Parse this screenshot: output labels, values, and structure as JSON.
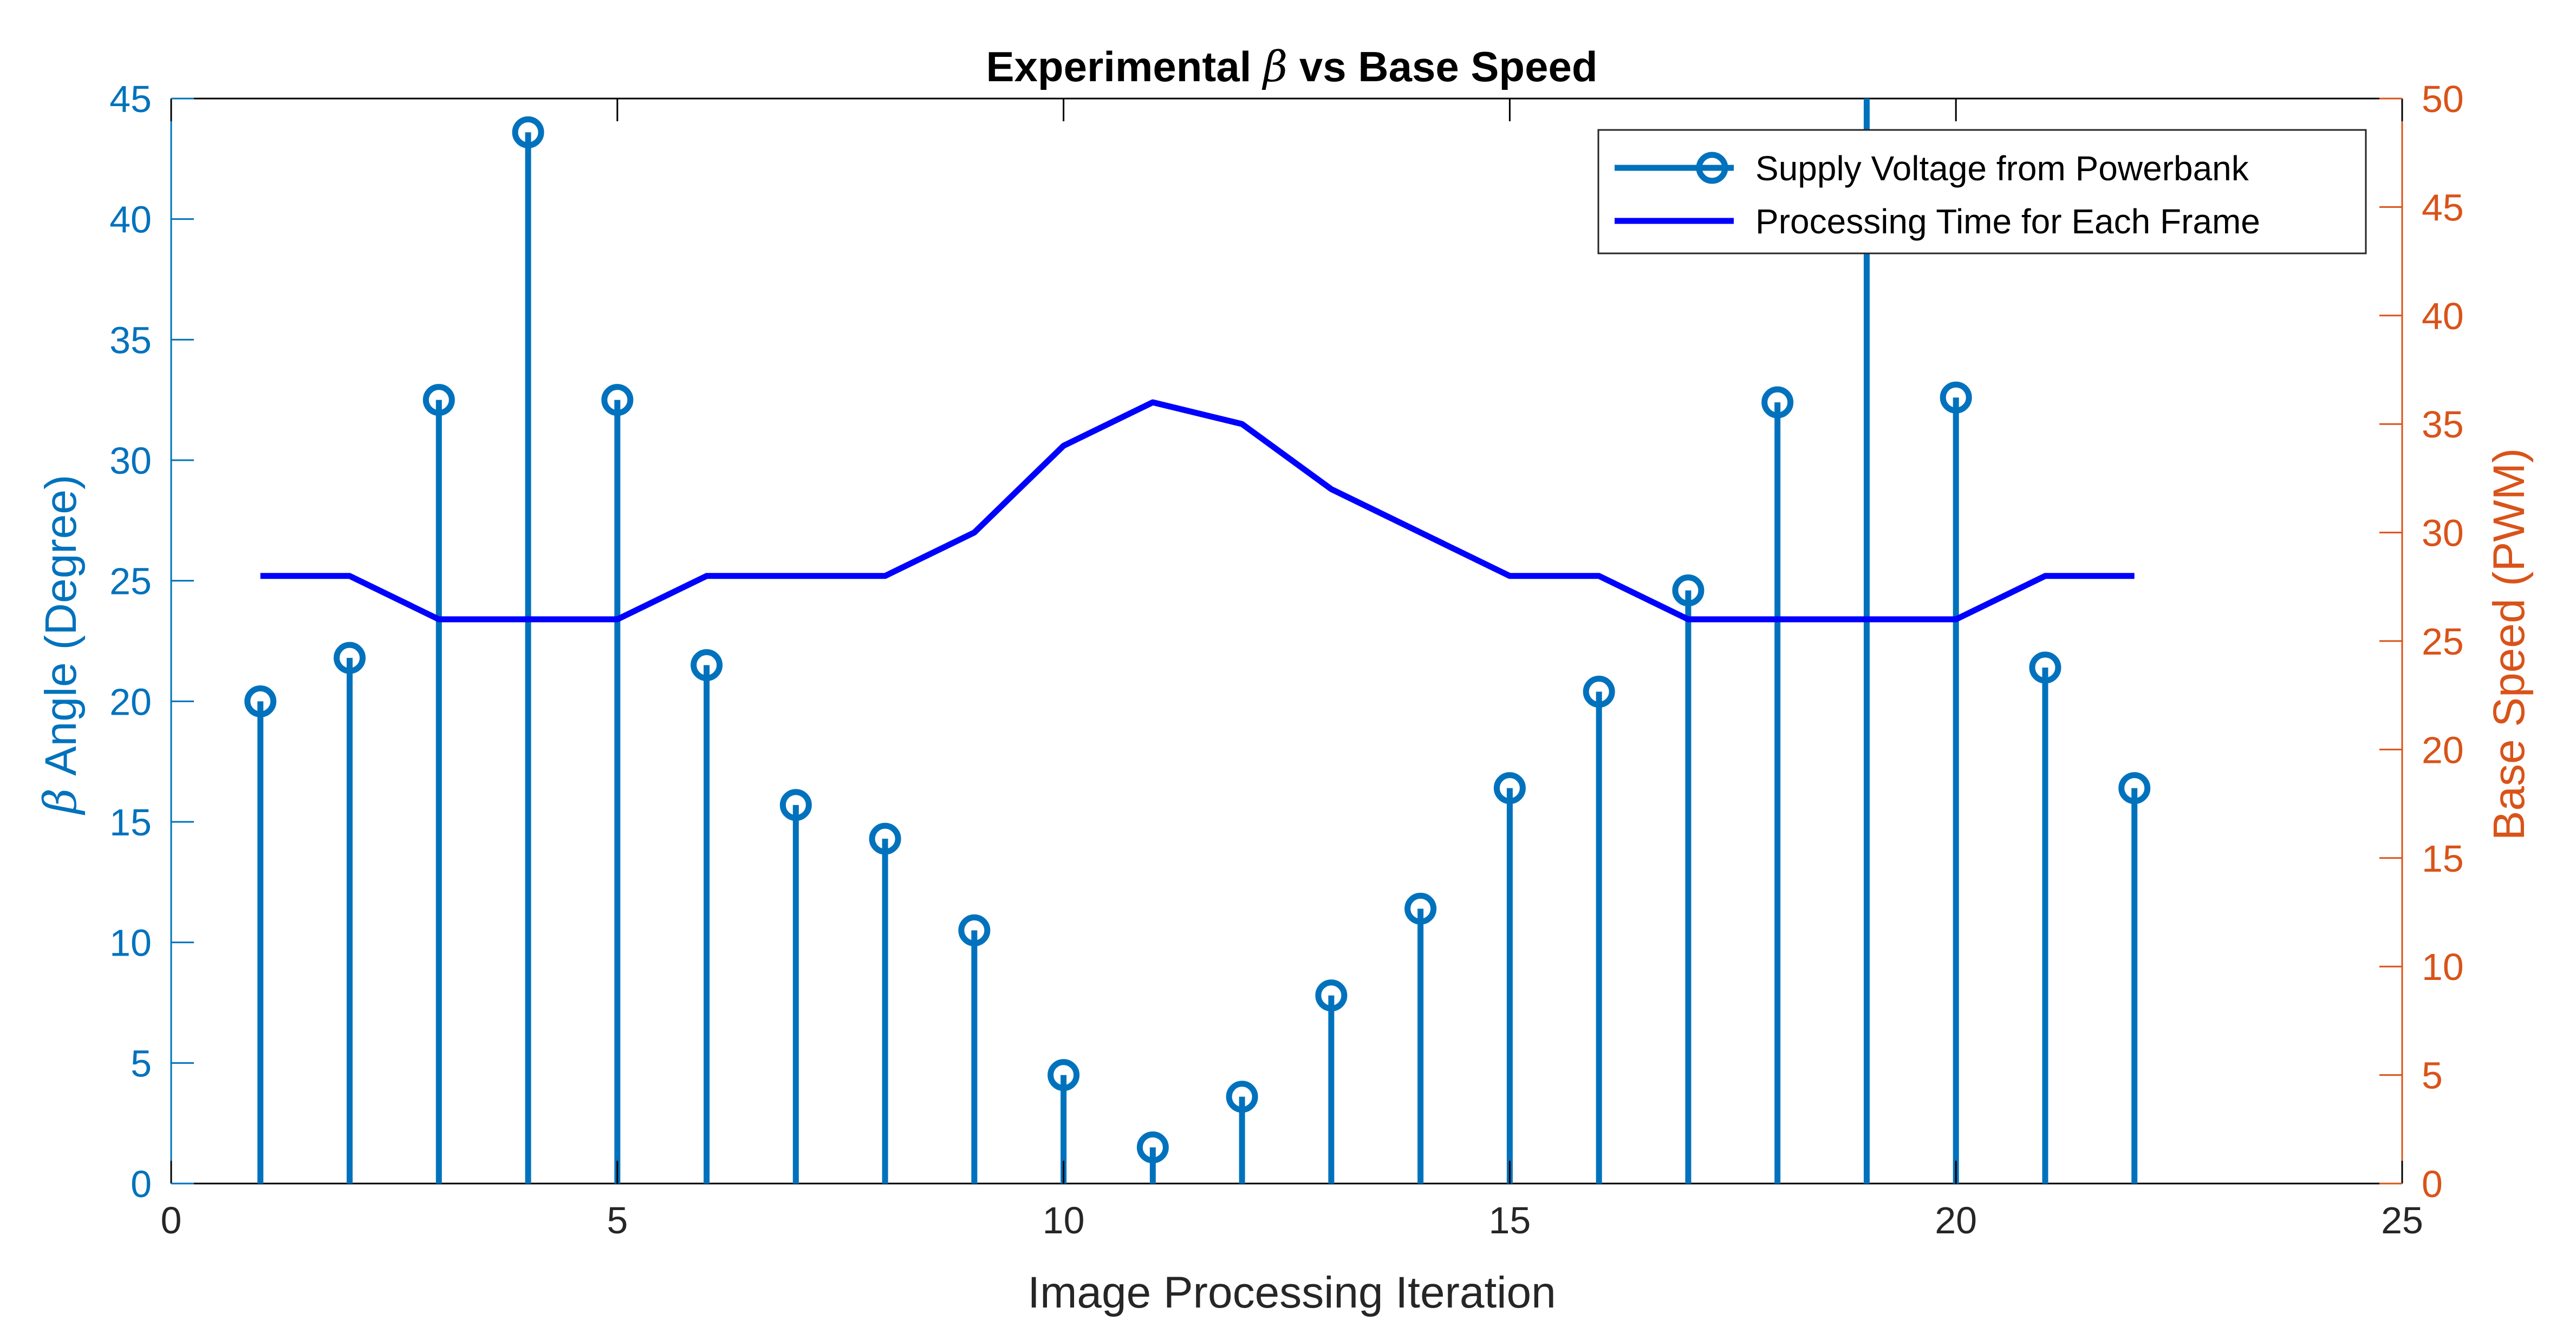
{
  "chart_data": {
    "type": "line",
    "title": "Experimental β vs Base Speed",
    "xlabel": "Image Processing Iteration",
    "ylabel_left": "β Angle (Degree)",
    "ylabel_right": "Base Speed (PWM)",
    "xlim": [
      0,
      25
    ],
    "ylim_left": [
      0,
      45
    ],
    "ylim_right": [
      0,
      50
    ],
    "x_ticks": [
      0,
      5,
      10,
      15,
      20,
      25
    ],
    "y_ticks_left": [
      0,
      5,
      10,
      15,
      20,
      25,
      30,
      35,
      40,
      45
    ],
    "y_ticks_right": [
      0,
      5,
      10,
      15,
      20,
      25,
      30,
      35,
      40,
      45,
      50
    ],
    "grid": false,
    "legend_position": "top-right",
    "colors": {
      "left_axis": "#0072BD",
      "right_axis": "#D95319",
      "stem_series": "#0072BD",
      "line_series": "#0000FF",
      "axes": "#000000"
    },
    "series": [
      {
        "name": "Supply Voltage from Powerbank",
        "type": "stem",
        "axis": "left",
        "marker": "open-circle",
        "x": [
          1,
          2,
          3,
          4,
          5,
          6,
          7,
          8,
          9,
          10,
          11,
          12,
          13,
          14,
          15,
          16,
          17,
          18,
          19,
          20,
          21,
          22
        ],
        "values": [
          20.0,
          21.8,
          32.5,
          43.6,
          32.5,
          21.5,
          15.7,
          14.3,
          10.5,
          4.5,
          1.5,
          3.6,
          7.8,
          11.4,
          16.4,
          20.4,
          24.6,
          32.4,
          46.0,
          32.6,
          21.4,
          16.4
        ]
      },
      {
        "name": "Processing Time for Each Frame",
        "type": "line",
        "axis": "right",
        "x": [
          1,
          2,
          3,
          4,
          5,
          6,
          7,
          8,
          9,
          10,
          11,
          12,
          13,
          14,
          15,
          16,
          17,
          18,
          19,
          20,
          21,
          22
        ],
        "values": [
          28,
          28,
          26,
          26,
          26,
          28,
          28,
          28,
          30,
          34,
          36,
          35,
          32,
          30,
          28,
          28,
          26,
          26,
          26,
          26,
          28,
          28
        ]
      }
    ]
  }
}
